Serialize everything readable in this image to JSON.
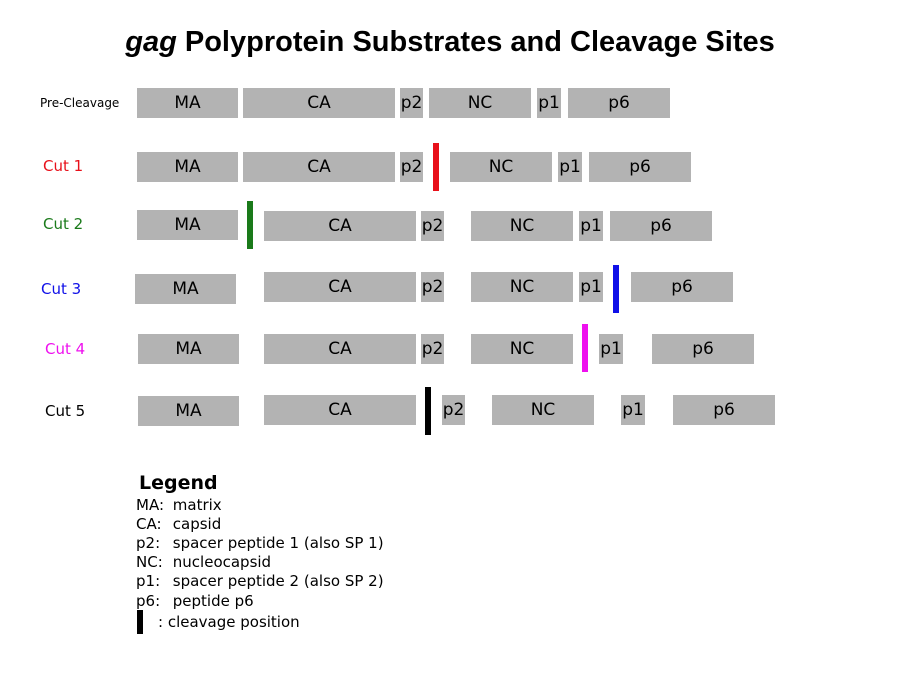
{
  "title": {
    "italic": "gag",
    "rest": "Polyprotein Substrates and Cleavage Sites"
  },
  "rows": [
    {
      "label": "Pre-Cleavage",
      "color": "#000000"
    },
    {
      "label": "Cut 1",
      "color": "#e8101a"
    },
    {
      "label": "Cut 2",
      "color": "#1a7a1a"
    },
    {
      "label": "Cut 3",
      "color": "#1010e8"
    },
    {
      "label": "Cut 4",
      "color": "#ee10ee"
    },
    {
      "label": "Cut 5",
      "color": "#000000"
    }
  ],
  "segments": {
    "MA": "MA",
    "CA": "CA",
    "p2": "p2",
    "NC": "NC",
    "p1": "p1",
    "p6": "p6"
  },
  "legend": {
    "title": "Legend",
    "items": [
      {
        "key": "MA:",
        "desc": "matrix"
      },
      {
        "key": "CA:",
        "desc": "capsid"
      },
      {
        "key": "p2:",
        "desc": "spacer peptide 1 (also SP 1)"
      },
      {
        "key": "NC:",
        "desc": "nucleocapsid"
      },
      {
        "key": "p1:",
        "desc": "spacer peptide 2 (also SP 2)"
      },
      {
        "key": "p6:",
        "desc": "peptide p6"
      }
    ],
    "cleavage_text": ": cleavage position"
  }
}
